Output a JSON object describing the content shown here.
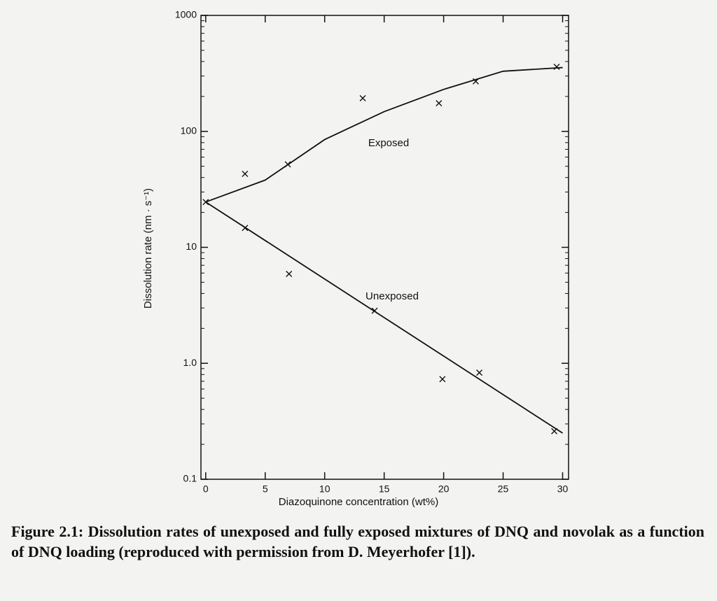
{
  "chart_data": {
    "type": "scatter",
    "x_label": "Diazoquinone concentration (wt%)",
    "y_label": "Dissolution rate (nm · s⁻¹)",
    "log_y": true,
    "xlim": [
      -0.4,
      30.5
    ],
    "xticks": [
      0,
      5,
      10,
      15,
      20,
      25,
      30
    ],
    "ylim": [
      0.1,
      1000
    ],
    "yticks": [
      {
        "value": 0.1,
        "label": "0.1"
      },
      {
        "value": 1,
        "label": "1.0"
      },
      10,
      100,
      1000
    ],
    "series": [
      {
        "name": "Exposed",
        "color": "#111111",
        "x": [
          0,
          3.3,
          6.9,
          13.2,
          19.6,
          22.7,
          29.5
        ],
        "values": [
          24.6,
          43,
          52,
          193,
          175,
          270,
          360
        ],
        "fit_x": [
          0,
          5,
          10,
          15,
          20,
          25,
          30
        ],
        "fit_values": [
          24.6,
          38,
          85,
          148,
          230,
          330,
          355
        ]
      },
      {
        "name": "Unexposed",
        "color": "#111111",
        "x": [
          3.3,
          7.0,
          14.2,
          19.9,
          23.0,
          29.3
        ],
        "values": [
          14.7,
          5.9,
          2.84,
          0.73,
          0.83,
          0.26
        ],
        "fit_x": [
          0,
          30
        ],
        "fit_values": [
          24.6,
          0.25
        ]
      }
    ],
    "caption": "Figure 2.1: Dissolution rates of unexposed and fully exposed mixtures of DNQ and novolak as a function of DNQ loading (reproduced with permission from D. Meyerhofer [1])."
  }
}
